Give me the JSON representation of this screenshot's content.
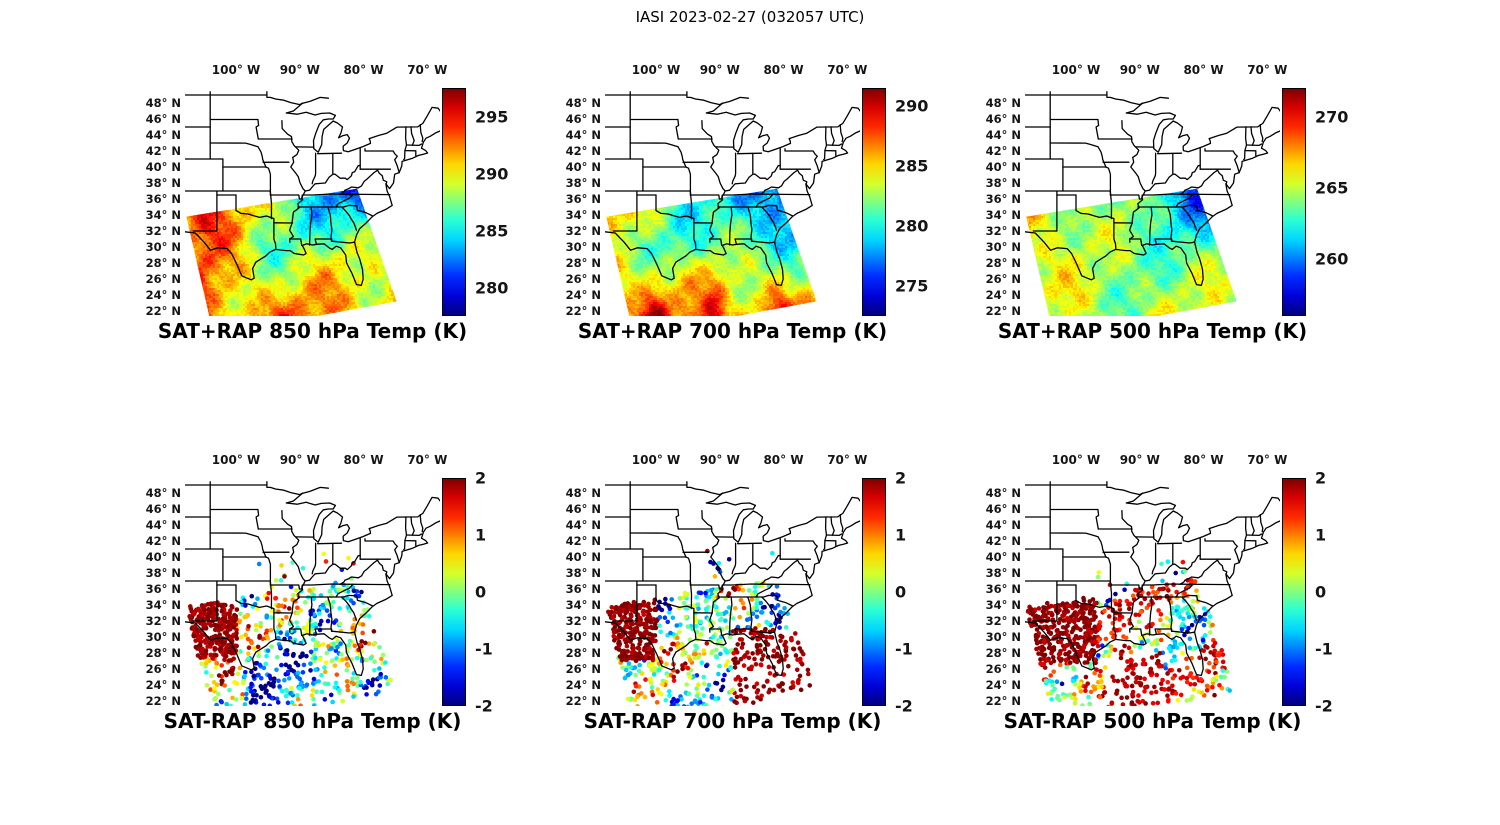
{
  "figure_title": "IASI 2023-02-27 (032057 UTC)",
  "axes": {
    "lon_ticks": [
      "100° W",
      "90° W",
      "80° W",
      "70° W"
    ],
    "lon_tick_values_deg_west": [
      100,
      90,
      80,
      70
    ],
    "lat_ticks": [
      "48° N",
      "46° N",
      "44° N",
      "42° N",
      "40° N",
      "38° N",
      "36° N",
      "34° N",
      "32° N",
      "30° N",
      "28° N",
      "26° N",
      "24° N",
      "22° N"
    ],
    "lat_tick_values_deg_north": [
      48,
      46,
      44,
      42,
      40,
      38,
      36,
      34,
      32,
      30,
      28,
      26,
      24,
      22
    ]
  },
  "map_region": "Central and eastern United States with state boundaries",
  "chart_data": [
    {
      "type": "heatmap",
      "row": 1,
      "col": 1,
      "title": "SAT+RAP 850 hPa Temp (K)",
      "units": "K",
      "colorbar": {
        "colormap": "jet",
        "tick_labels": [
          "280",
          "285",
          "290",
          "295"
        ],
        "tick_values": [
          280,
          285,
          290,
          295
        ],
        "vmin": 277.5,
        "vmax": 297.5
      },
      "description": "Satellite swath of 850 hPa temperature over the south-central US; warm 290-297 K ribbons over west Texas and along the Gulf coast, 283-287 K cyan/green across the central swath, cool 278-283 K blues over the Tennessee/Mississippi valley part of the swath."
    },
    {
      "type": "heatmap",
      "row": 1,
      "col": 2,
      "title": "SAT+RAP 700 hPa Temp (K)",
      "units": "K",
      "colorbar": {
        "colormap": "jet",
        "tick_labels": [
          "275",
          "280",
          "285",
          "290"
        ],
        "tick_values": [
          275,
          280,
          285,
          290
        ],
        "vmin": 272.5,
        "vmax": 291.5
      },
      "description": "700 hPa temperature swath; 279-284 K greens and cyans over Texas, deep blue 273-277 K over the northeastern portion of the swath, warm 286-290 K orange/red patches along the southern (Gulf) edge."
    },
    {
      "type": "heatmap",
      "row": 1,
      "col": 3,
      "title": "SAT+RAP 500 hPa Temp (K)",
      "units": "K",
      "colorbar": {
        "colormap": "jet",
        "tick_labels": [
          "260",
          "265",
          "270"
        ],
        "tick_values": [
          260,
          265,
          270
        ],
        "vmin": 256,
        "vmax": 272
      },
      "description": "500 hPa temperature swath; mottled 262-267 K cyan/yellow field with cooler 257-261 K blues over the northeastern part of the swath."
    },
    {
      "type": "scatter",
      "row": 2,
      "col": 1,
      "title": "SAT-RAP 850 hPa Temp (K)",
      "units": "K",
      "colorbar": {
        "colormap": "jet",
        "tick_labels": [
          "-2",
          "-1",
          "0",
          "1",
          "2"
        ],
        "tick_values": [
          -2,
          -1,
          0,
          1,
          2
        ],
        "vmin": -2,
        "vmax": 2
      },
      "description": "SAT minus RAP 850 hPa differences as colored dots; a +2 K dark-red cluster over west Texas, mixed plus/minus 1 K dots elsewhere with -1 to -2 K blues concentrated over the lower Mississippi valley and Gulf coast."
    },
    {
      "type": "scatter",
      "row": 2,
      "col": 2,
      "title": "SAT-RAP 700 hPa Temp (K)",
      "units": "K",
      "colorbar": {
        "colormap": "jet",
        "tick_labels": [
          "-2",
          "-1",
          "0",
          "1",
          "2"
        ],
        "tick_values": [
          -2,
          -1,
          0,
          1,
          2
        ],
        "vmin": -2,
        "vmax": 2
      },
      "description": "SAT minus RAP 700 hPa differences; +2 K dark red over west Texas and a broad +2 K region over the Southeast/Gulf coast, near 0 to -1 K cyans over the central swath with scattered blue dots."
    },
    {
      "type": "scatter",
      "row": 2,
      "col": 3,
      "title": "SAT-RAP 500 hPa Temp (K)",
      "units": "K",
      "colorbar": {
        "colormap": "jet",
        "tick_labels": [
          "-2",
          "-1",
          "0",
          "1",
          "2"
        ],
        "tick_values": [
          -2,
          -1,
          0,
          1,
          2
        ],
        "vmin": -2,
        "vmax": 2
      },
      "description": "SAT minus RAP 500 hPa differences; large +2 K dark-red region over Texas, +1 to +2 K orange/red streaks across the southern swath, with -1 to -2 K cyan/blue areas in between."
    }
  ]
}
